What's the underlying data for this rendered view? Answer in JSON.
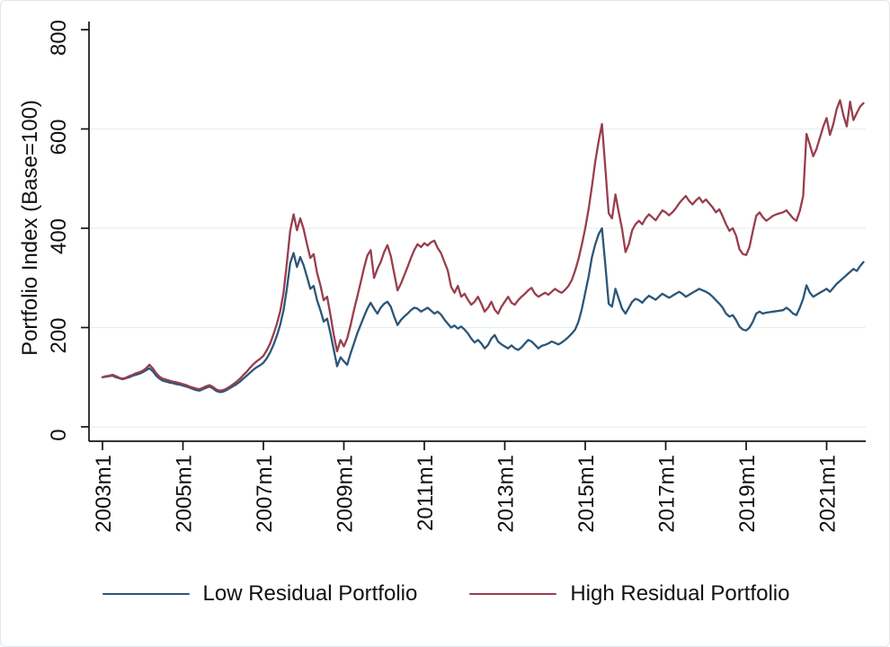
{
  "chart_data": {
    "type": "line",
    "title": "",
    "xlabel": "",
    "ylabel": "Portfolio Index (Base=100)",
    "x_frequency": "monthly",
    "x_start": "2003m1",
    "x_end": "2021m12",
    "ylim": [
      0,
      800
    ],
    "grid": "horizontal",
    "grid_values": [
      0,
      200,
      400,
      600
    ],
    "y_ticks": [
      0,
      200,
      400,
      600,
      800
    ],
    "x_ticks": [
      {
        "label": "2003m1",
        "month_index": 0
      },
      {
        "label": "2005m1",
        "month_index": 24
      },
      {
        "label": "2007m1",
        "month_index": 48
      },
      {
        "label": "2009m1",
        "month_index": 72
      },
      {
        "label": "2011m1",
        "month_index": 96
      },
      {
        "label": "2013m1",
        "month_index": 120
      },
      {
        "label": "2015m1",
        "month_index": 144
      },
      {
        "label": "2017m1",
        "month_index": 168
      },
      {
        "label": "2019m1",
        "month_index": 192
      },
      {
        "label": "2021m1",
        "month_index": 216
      }
    ],
    "legend_position": "bottom",
    "series": [
      {
        "name": "Low Residual Portfolio",
        "color": "#2b5679",
        "values": [
          100,
          101,
          102,
          103,
          100,
          98,
          96,
          98,
          100,
          103,
          105,
          107,
          110,
          114,
          118,
          112,
          103,
          97,
          93,
          91,
          89,
          88,
          86,
          85,
          83,
          81,
          79,
          76,
          74,
          73,
          76,
          79,
          81,
          77,
          72,
          70,
          71,
          74,
          78,
          82,
          86,
          91,
          97,
          103,
          109,
          115,
          120,
          124,
          129,
          138,
          150,
          165,
          183,
          205,
          235,
          278,
          330,
          350,
          322,
          342,
          325,
          302,
          278,
          284,
          255,
          235,
          212,
          218,
          188,
          155,
          122,
          140,
          132,
          125,
          148,
          168,
          188,
          205,
          222,
          238,
          250,
          238,
          228,
          240,
          248,
          252,
          242,
          222,
          205,
          215,
          222,
          228,
          235,
          240,
          238,
          232,
          236,
          240,
          234,
          228,
          232,
          226,
          216,
          208,
          200,
          204,
          198,
          202,
          196,
          188,
          178,
          170,
          175,
          168,
          158,
          165,
          178,
          185,
          172,
          166,
          162,
          158,
          164,
          158,
          155,
          160,
          168,
          175,
          172,
          165,
          158,
          163,
          165,
          168,
          172,
          169,
          166,
          170,
          175,
          181,
          188,
          196,
          212,
          238,
          270,
          302,
          342,
          368,
          388,
          400,
          325,
          248,
          242,
          278,
          258,
          238,
          228,
          240,
          252,
          258,
          255,
          250,
          258,
          264,
          260,
          256,
          262,
          268,
          264,
          260,
          264,
          268,
          272,
          268,
          262,
          266,
          270,
          274,
          278,
          275,
          272,
          268,
          262,
          255,
          248,
          240,
          228,
          222,
          225,
          215,
          202,
          196,
          194,
          200,
          212,
          228,
          232,
          228,
          230,
          231,
          232,
          233,
          234,
          235,
          240,
          235,
          228,
          225,
          240,
          258,
          285,
          270,
          262,
          266,
          270,
          274,
          278,
          272,
          280,
          288,
          294,
          300,
          306,
          312,
          318,
          314,
          324,
          332
        ]
      },
      {
        "name": "High Residual Portfolio",
        "color": "#983e4e",
        "values": [
          100,
          102,
          103,
          105,
          102,
          99,
          97,
          99,
          102,
          105,
          108,
          110,
          113,
          118,
          125,
          118,
          108,
          101,
          97,
          95,
          93,
          91,
          90,
          88,
          86,
          84,
          81,
          79,
          77,
          76,
          79,
          82,
          84,
          80,
          75,
          73,
          74,
          77,
          81,
          86,
          91,
          97,
          104,
          111,
          119,
          126,
          132,
          137,
          143,
          154,
          168,
          186,
          207,
          232,
          270,
          330,
          395,
          428,
          396,
          420,
          398,
          368,
          340,
          348,
          310,
          285,
          255,
          262,
          225,
          185,
          152,
          175,
          162,
          178,
          205,
          235,
          262,
          290,
          320,
          345,
          356,
          300,
          318,
          332,
          352,
          366,
          344,
          310,
          275,
          288,
          305,
          322,
          340,
          356,
          368,
          362,
          370,
          365,
          372,
          375,
          360,
          350,
          332,
          315,
          282,
          270,
          284,
          262,
          268,
          256,
          246,
          252,
          262,
          248,
          232,
          240,
          252,
          236,
          228,
          242,
          252,
          262,
          250,
          246,
          255,
          262,
          268,
          275,
          280,
          268,
          262,
          266,
          270,
          266,
          272,
          278,
          273,
          270,
          276,
          284,
          296,
          315,
          338,
          368,
          400,
          438,
          485,
          535,
          575,
          610,
          520,
          430,
          420,
          468,
          432,
          398,
          352,
          368,
          396,
          408,
          415,
          408,
          420,
          428,
          422,
          416,
          426,
          436,
          432,
          426,
          432,
          440,
          450,
          458,
          465,
          455,
          448,
          456,
          462,
          452,
          458,
          450,
          442,
          432,
          438,
          424,
          408,
          395,
          400,
          385,
          358,
          348,
          346,
          362,
          395,
          425,
          432,
          422,
          415,
          420,
          425,
          428,
          430,
          432,
          436,
          428,
          420,
          415,
          435,
          465,
          590,
          568,
          545,
          560,
          582,
          605,
          622,
          588,
          610,
          640,
          658,
          628,
          605,
          655,
          618,
          632,
          645,
          652
        ]
      }
    ]
  },
  "style": {
    "axis_color": "#141414",
    "grid_color": "#e7efef",
    "text_color": "#111111"
  }
}
